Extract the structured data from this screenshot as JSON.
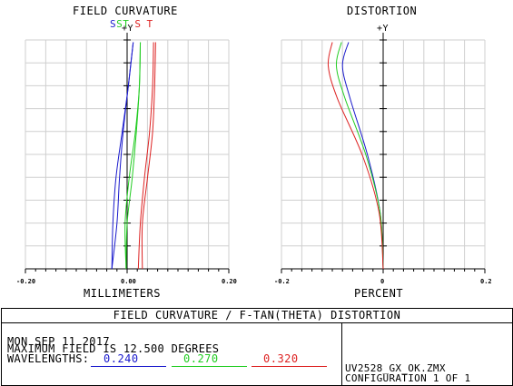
{
  "colors": {
    "blue": "#1a1acc",
    "green": "#22cc22",
    "red": "#dd2222",
    "grid": "#cfcfcf",
    "axis": "#000000"
  },
  "chart_data": [
    {
      "type": "line",
      "title": "FIELD CURVATURE",
      "xlabel": "MILLIMETERS",
      "ylabel": "+Y",
      "legend": [
        "S",
        "S",
        "T",
        "S",
        "T"
      ],
      "xlim": [
        -0.2,
        0.2
      ],
      "ylim": [
        0,
        12.5
      ],
      "x_ticks": [
        "-0.20",
        "0.00",
        "0.20"
      ],
      "series": [
        {
          "name": "0.240 S",
          "color": "blue",
          "points": [
            [
              -0.03,
              0.0
            ],
            [
              -0.02,
              2.5
            ],
            [
              -0.015,
              5.0
            ],
            [
              -0.008,
              7.5
            ],
            [
              0.002,
              10
            ],
            [
              0.012,
              12.5
            ]
          ]
        },
        {
          "name": "0.240 T",
          "color": "blue",
          "points": [
            [
              -0.03,
              0.0
            ],
            [
              -0.028,
              2.5
            ],
            [
              -0.022,
              5.0
            ],
            [
              -0.01,
              7.5
            ],
            [
              0.002,
              10
            ],
            [
              0.012,
              12.5
            ]
          ]
        },
        {
          "name": "0.270 S",
          "color": "green",
          "points": [
            [
              -0.002,
              0.0
            ],
            [
              0.0,
              2.5
            ],
            [
              0.01,
              5.0
            ],
            [
              0.018,
              7.5
            ],
            [
              0.024,
              10
            ],
            [
              0.026,
              12.5
            ]
          ]
        },
        {
          "name": "0.270 T",
          "color": "green",
          "points": [
            [
              -0.002,
              0.0
            ],
            [
              -0.004,
              2.5
            ],
            [
              0.004,
              5.0
            ],
            [
              0.016,
              7.5
            ],
            [
              0.024,
              10
            ],
            [
              0.026,
              12.5
            ]
          ]
        },
        {
          "name": "0.320 S",
          "color": "red",
          "points": [
            [
              0.022,
              0.0
            ],
            [
              0.026,
              2.5
            ],
            [
              0.034,
              5.0
            ],
            [
              0.044,
              7.5
            ],
            [
              0.05,
              10
            ],
            [
              0.052,
              12.5
            ]
          ]
        },
        {
          "name": "0.320 T",
          "color": "red",
          "points": [
            [
              0.03,
              0.0
            ],
            [
              0.03,
              2.5
            ],
            [
              0.04,
              5.0
            ],
            [
              0.05,
              7.5
            ],
            [
              0.054,
              10
            ],
            [
              0.056,
              12.5
            ]
          ]
        }
      ]
    },
    {
      "type": "line",
      "title": "DISTORTION",
      "xlabel": "PERCENT",
      "ylabel": "+Y",
      "xlim": [
        -0.2,
        0.2
      ],
      "ylim": [
        0,
        12.5
      ],
      "x_ticks": [
        "-0.2",
        "0",
        "0.2"
      ],
      "series": [
        {
          "name": "0.240",
          "color": "blue",
          "points": [
            [
              0.0,
              0.0
            ],
            [
              -0.006,
              3.1
            ],
            [
              -0.03,
              6.2
            ],
            [
              -0.065,
              9.4
            ],
            [
              -0.08,
              11.2
            ],
            [
              -0.068,
              12.5
            ]
          ]
        },
        {
          "name": "0.270",
          "color": "green",
          "points": [
            [
              0.0,
              0.0
            ],
            [
              -0.006,
              3.1
            ],
            [
              -0.033,
              6.2
            ],
            [
              -0.075,
              9.4
            ],
            [
              -0.092,
              11.2
            ],
            [
              -0.082,
              12.5
            ]
          ]
        },
        {
          "name": "0.320",
          "color": "red",
          "points": [
            [
              0.0,
              0.0
            ],
            [
              -0.008,
              3.1
            ],
            [
              -0.04,
              6.2
            ],
            [
              -0.09,
              9.4
            ],
            [
              -0.108,
              11.2
            ],
            [
              -0.1,
              12.5
            ]
          ]
        }
      ]
    }
  ],
  "info": {
    "banner": "FIELD CURVATURE / F-TAN(THETA) DISTORTION",
    "date": "MON SEP 11 2017",
    "max_field": "MAXIMUM FIELD IS 12.500 DEGREES",
    "wavelengths_label": "WAVELENGTHS:",
    "wavelengths": [
      "0.240",
      "0.270",
      "0.320"
    ],
    "file": "UV2528_GX_OK.ZMX",
    "configuration": "CONFIGURATION 1 OF 1"
  }
}
